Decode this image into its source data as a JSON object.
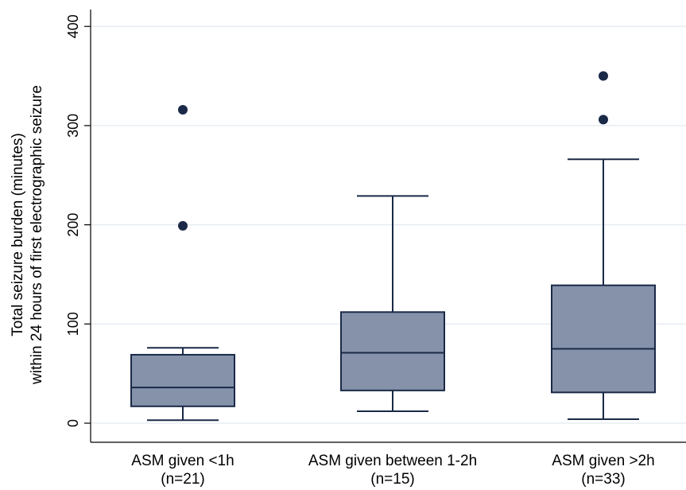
{
  "chart_data": {
    "type": "box",
    "title": "",
    "ylabel_lines": [
      "Total seizure burden (minutes)",
      "within 24 hours of first electrographic seizure"
    ],
    "xlabel": "",
    "ylim": [
      0,
      420
    ],
    "yticks": [
      0,
      100,
      200,
      300,
      400
    ],
    "grid": true,
    "colors": {
      "box_fill": "#8592aa",
      "box_stroke": "#1a2947",
      "outlier": "#1a2947",
      "grid": "#e4eaf0",
      "axis": "#000000"
    },
    "groups": [
      {
        "label": "ASM given <1h",
        "n_label": "(n=21)",
        "whisker_low": 3,
        "q1": 17,
        "median": 36,
        "q3": 69,
        "whisker_high": 76,
        "outliers": [
          316,
          199
        ]
      },
      {
        "label": "ASM given between 1-2h",
        "n_label": "(n=15)",
        "whisker_low": 12,
        "q1": 33,
        "median": 71,
        "q3": 112,
        "whisker_high": 229,
        "outliers": []
      },
      {
        "label": "ASM given >2h",
        "n_label": "(n=33)",
        "whisker_low": 4,
        "q1": 31,
        "median": 75,
        "q3": 139,
        "whisker_high": 266,
        "outliers": [
          350,
          306
        ]
      }
    ]
  }
}
